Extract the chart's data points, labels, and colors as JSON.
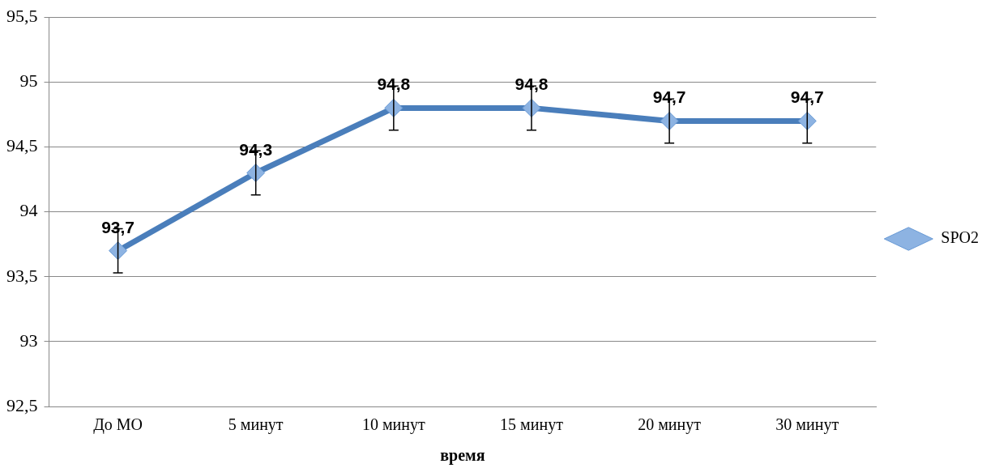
{
  "chart_data": {
    "type": "line",
    "xlabel": "время",
    "categories": [
      "До МО",
      "5 минут",
      "10 минут",
      "15 минут",
      "20 минут",
      "30 минут"
    ],
    "series": [
      {
        "name": "SPO2",
        "color": "#4a7ebb",
        "values": [
          93.7,
          94.3,
          94.8,
          94.8,
          94.7,
          94.7
        ],
        "errors": [
          0.17,
          0.17,
          0.17,
          0.17,
          0.17,
          0.17
        ],
        "value_labels": [
          "93,7",
          "94,3",
          "94,8",
          "94,8",
          "94,7",
          "94,7"
        ]
      }
    ],
    "ylim": [
      92.5,
      95.5
    ],
    "yticks": [
      {
        "value": 92.5,
        "label": "92,5"
      },
      93,
      {
        "value": 93.5,
        "label": "93,5"
      },
      94,
      {
        "value": 94.5,
        "label": "94,5"
      },
      95,
      {
        "value": 95.5,
        "label": "95,5"
      }
    ],
    "grid": "y",
    "legend": "right",
    "marker": "diamond",
    "line_style": "solid"
  }
}
